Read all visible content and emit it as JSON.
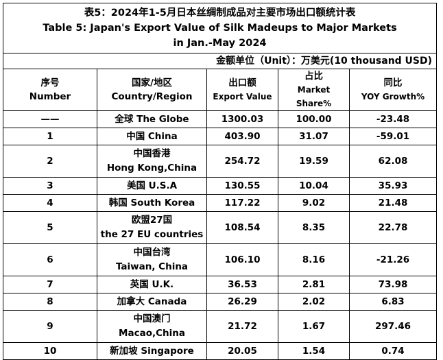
{
  "title": {
    "line1": "表5：2024年1-5月日本丝绸制成品对主要市场出口额统计表",
    "line2": "Table 5: Japan's Export Value of Silk Madeups to Major Markets",
    "line3": "in Jan.-May 2024"
  },
  "unit": "金额单位（Unit）：万美元(10 thousand USD)",
  "headers": [
    {
      "cn": "序号",
      "en": "Number"
    },
    {
      "cn": "国家/地区",
      "en": "Country/Region"
    },
    {
      "cn": "出口额",
      "en": "Export Value"
    },
    {
      "cn": "占比",
      "en": "Market Share%"
    },
    {
      "cn": "同比",
      "en": "YOY Growth%"
    }
  ],
  "rows": [
    {
      "num": "——",
      "country1": "全球 The Globe",
      "country2": "",
      "value": "1300.03",
      "share": "100.00",
      "yoy": "-23.48"
    },
    {
      "num": "1",
      "country1": "中国 China",
      "country2": "",
      "value": "403.90",
      "share": "31.07",
      "yoy": "-59.01"
    },
    {
      "num": "2",
      "country1": "中国香港",
      "country2": "Hong Kong,China",
      "value": "254.72",
      "share": "19.59",
      "yoy": "62.08"
    },
    {
      "num": "3",
      "country1": "美国 U.S.A",
      "country2": "",
      "value": "130.55",
      "share": "10.04",
      "yoy": "35.93"
    },
    {
      "num": "4",
      "country1": "韩国 South Korea",
      "country2": "",
      "value": "117.22",
      "share": "9.02",
      "yoy": "21.48"
    },
    {
      "num": "5",
      "country1": "欧盟27国",
      "country2": "the 27 EU countries",
      "value": "108.54",
      "share": "8.35",
      "yoy": "22.78"
    },
    {
      "num": "6",
      "country1": "中国台湾",
      "country2": "Taiwan, China",
      "value": "106.10",
      "share": "8.16",
      "yoy": "-21.26"
    },
    {
      "num": "7",
      "country1": "英国 U.K.",
      "country2": "",
      "value": "36.53",
      "share": "2.81",
      "yoy": "73.98"
    },
    {
      "num": "8",
      "country1": "加拿大 Canada",
      "country2": "",
      "value": "26.29",
      "share": "2.02",
      "yoy": "6.83"
    },
    {
      "num": "9",
      "country1": "中国澳门",
      "country2": "Macao,China",
      "value": "21.72",
      "share": "1.67",
      "yoy": "297.46"
    },
    {
      "num": "10",
      "country1": "新加坡 Singapore",
      "country2": "",
      "value": "20.05",
      "share": "1.54",
      "yoy": "0.74"
    }
  ]
}
